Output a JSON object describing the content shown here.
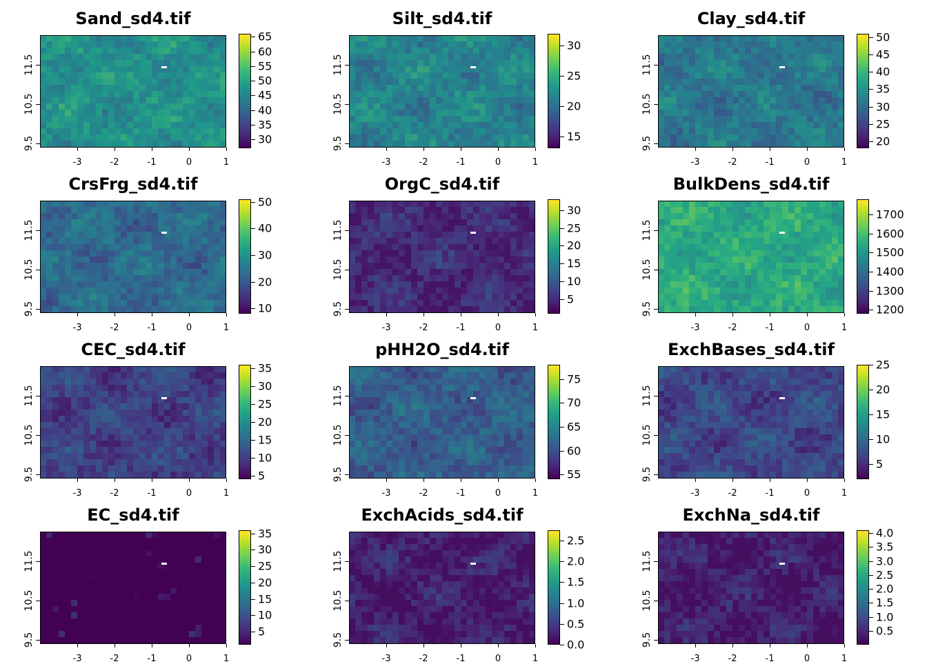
{
  "colors": {
    "viridis": [
      "#440154",
      "#482878",
      "#3e4989",
      "#31688e",
      "#26828e",
      "#1f9e89",
      "#35b779",
      "#6ece58",
      "#b5de2b",
      "#fde725"
    ]
  },
  "x_axis_ticks": [
    "-3",
    "-2",
    "-1",
    "0",
    "1"
  ],
  "x_axis_values": [
    -3,
    -2,
    -1,
    0,
    1
  ],
  "y_axis_ticks": [
    "9.5",
    "10.5",
    "11.5"
  ],
  "y_axis_values": [
    9.5,
    10.5,
    11.5
  ],
  "panels": [
    {
      "title": "Sand_sd4.tif",
      "legend_labels": [
        "30",
        "35",
        "40",
        "45",
        "50",
        "55",
        "60",
        "65"
      ],
      "legend_values": [
        30,
        35,
        40,
        45,
        50,
        55,
        60,
        65
      ],
      "range": [
        27,
        66
      ],
      "typical": 0.5
    },
    {
      "title": "Silt_sd4.tif",
      "legend_labels": [
        "15",
        "20",
        "25",
        "30"
      ],
      "legend_values": [
        15,
        20,
        25,
        30
      ],
      "range": [
        13,
        32
      ],
      "typical": 0.45
    },
    {
      "title": "Clay_sd4.tif",
      "legend_labels": [
        "20",
        "25",
        "30",
        "35",
        "40",
        "45",
        "50"
      ],
      "legend_values": [
        20,
        25,
        30,
        35,
        40,
        45,
        50
      ],
      "range": [
        18,
        51
      ],
      "typical": 0.4
    },
    {
      "title": "CrsFrg_sd4.tif",
      "legend_labels": [
        "10",
        "20",
        "30",
        "40",
        "50"
      ],
      "legend_values": [
        10,
        20,
        30,
        40,
        50
      ],
      "range": [
        8,
        51
      ],
      "typical": 0.35
    },
    {
      "title": "OrgC_sd4.tif",
      "legend_labels": [
        "5",
        "10",
        "15",
        "20",
        "25",
        "30"
      ],
      "legend_values": [
        5,
        10,
        15,
        20,
        25,
        30
      ],
      "range": [
        1,
        33
      ],
      "typical": 0.12
    },
    {
      "title": "BulkDens_sd4.tif",
      "legend_labels": [
        "1200",
        "1300",
        "1400",
        "1500",
        "1600",
        "1700"
      ],
      "legend_values": [
        1200,
        1300,
        1400,
        1500,
        1600,
        1700
      ],
      "range": [
        1180,
        1780
      ],
      "typical": 0.6
    },
    {
      "title": "CEC_sd4.tif",
      "legend_labels": [
        "5",
        "10",
        "15",
        "20",
        "25",
        "30",
        "35"
      ],
      "legend_values": [
        5,
        10,
        15,
        20,
        25,
        30,
        35
      ],
      "range": [
        4,
        36
      ],
      "typical": 0.2
    },
    {
      "title": "pHH2O_sd4.tif",
      "legend_labels": [
        "55",
        "60",
        "65",
        "70",
        "75"
      ],
      "legend_values": [
        55,
        60,
        65,
        70,
        75
      ],
      "range": [
        54,
        78
      ],
      "typical": 0.3
    },
    {
      "title": "ExchBases_sd4.tif",
      "legend_labels": [
        "5",
        "10",
        "15",
        "20",
        "25"
      ],
      "legend_values": [
        5,
        10,
        15,
        20,
        25
      ],
      "range": [
        2,
        25
      ],
      "typical": 0.22
    },
    {
      "title": "EC_sd4.tif",
      "legend_labels": [
        "5",
        "10",
        "15",
        "20",
        "25",
        "30",
        "35"
      ],
      "legend_values": [
        5,
        10,
        15,
        20,
        25,
        30,
        35
      ],
      "range": [
        1,
        36
      ],
      "typical": 0.0
    },
    {
      "title": "ExchAcids_sd4.tif",
      "legend_labels": [
        "0.0",
        "0.5",
        "1.0",
        "1.5",
        "2.0",
        "2.5"
      ],
      "legend_values": [
        0.0,
        0.5,
        1.0,
        1.5,
        2.0,
        2.5
      ],
      "range": [
        0,
        2.75
      ],
      "typical": 0.08
    },
    {
      "title": "ExchNa_sd4.tif",
      "legend_labels": [
        "0.5",
        "1.0",
        "1.5",
        "2.0",
        "2.5",
        "3.0",
        "3.5",
        "4.0"
      ],
      "legend_values": [
        0.5,
        1.0,
        1.5,
        2.0,
        2.5,
        3.0,
        3.5,
        4.0
      ],
      "range": [
        0,
        4.1
      ],
      "typical": 0.08
    }
  ]
}
